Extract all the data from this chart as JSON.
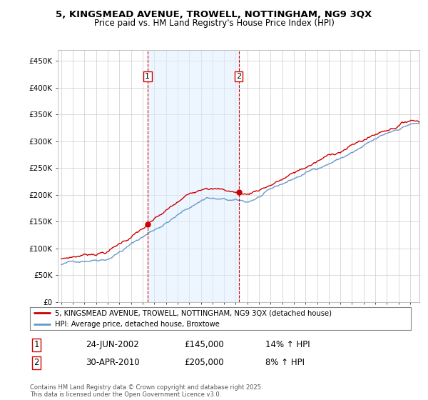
{
  "title_line1": "5, KINGSMEAD AVENUE, TROWELL, NOTTINGHAM, NG9 3QX",
  "title_line2": "Price paid vs. HM Land Registry's House Price Index (HPI)",
  "ylim": [
    0,
    470000
  ],
  "yticks": [
    0,
    50000,
    100000,
    150000,
    200000,
    250000,
    300000,
    350000,
    400000,
    450000
  ],
  "ytick_labels": [
    "£0",
    "£50K",
    "£100K",
    "£150K",
    "£200K",
    "£250K",
    "£300K",
    "£350K",
    "£400K",
    "£450K"
  ],
  "sale1_date": "24-JUN-2002",
  "sale1_price": 145000,
  "sale1_pct": "14%",
  "sale2_date": "30-APR-2010",
  "sale2_price": 205000,
  "sale2_pct": "8%",
  "legend_label1": "5, KINGSMEAD AVENUE, TROWELL, NOTTINGHAM, NG9 3QX (detached house)",
  "legend_label2": "HPI: Average price, detached house, Broxtowe",
  "color_price": "#cc0000",
  "color_hpi": "#6699cc",
  "color_fill": "#ddeeff",
  "footer": "Contains HM Land Registry data © Crown copyright and database right 2025.\nThis data is licensed under the Open Government Licence v3.0.",
  "background_color": "#ffffff"
}
